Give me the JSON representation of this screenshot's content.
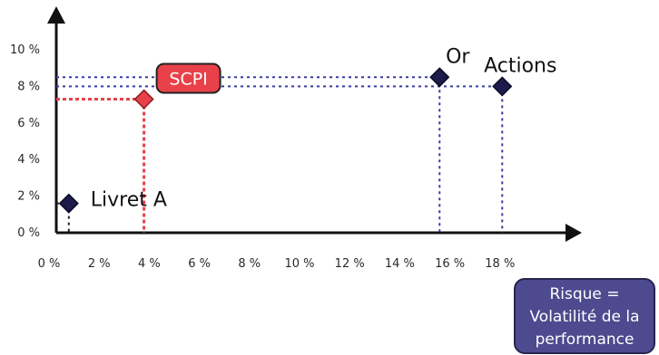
{
  "chart_data": {
    "type": "scatter",
    "x_ticks": [
      "0 %",
      "2 %",
      "4 %",
      "6 %",
      "8 %",
      "10 %",
      "12 %",
      "14 %",
      "16 %",
      "18 %"
    ],
    "y_ticks": [
      "0 %",
      "2 %",
      "4 %",
      "6 %",
      "8 %",
      "10 %"
    ],
    "xlim": [
      0,
      19
    ],
    "ylim": [
      0,
      11
    ],
    "grid": false,
    "points": [
      {
        "label": "Livret A",
        "x": 0.5,
        "y": 1.6,
        "color": "#1c1b4a",
        "guide_color": "#222222",
        "highlight": false
      },
      {
        "label": "SCPI",
        "x": 3.5,
        "y": 7.3,
        "color": "#e8414a",
        "guide_color": "#e8414a",
        "highlight": true
      },
      {
        "label": "Or",
        "x": 15.3,
        "y": 8.5,
        "color": "#1c1b4a",
        "guide_color": "#3a3aa8",
        "highlight": false
      },
      {
        "label": "Actions",
        "x": 17.8,
        "y": 8.0,
        "color": "#1c1b4a",
        "guide_color": "#3a3aa8",
        "highlight": false
      }
    ],
    "annotation": {
      "lines": [
        "Risque =",
        "Volatilité de la",
        "performance"
      ],
      "color": "#4e4a8f"
    }
  }
}
